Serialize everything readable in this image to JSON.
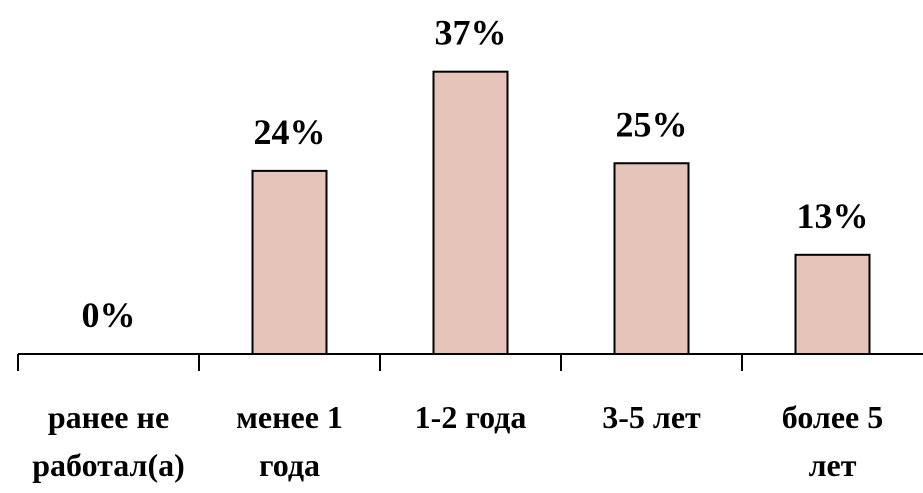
{
  "chart_data": {
    "type": "bar",
    "categories": [
      [
        "ранее не",
        "работал(а)"
      ],
      [
        "менее 1",
        "года"
      ],
      [
        "1-2 года"
      ],
      [
        "3-5 лет"
      ],
      [
        "более 5",
        "лет"
      ]
    ],
    "values": [
      0,
      24,
      37,
      25,
      13
    ],
    "value_labels": [
      "0%",
      "24%",
      "37%",
      "25%",
      "13%"
    ],
    "unit": "%",
    "title": "",
    "xlabel": "",
    "ylabel": "",
    "ylim": [
      0,
      40
    ],
    "grid": false,
    "legend": "none",
    "bar_color": "#e6c4b9",
    "bar_edge_color": "#000000"
  }
}
